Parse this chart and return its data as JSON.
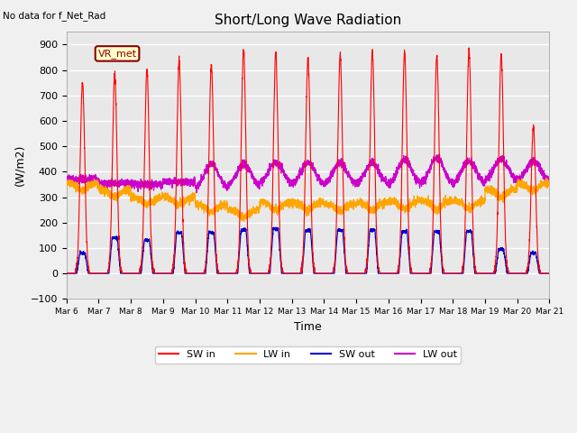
{
  "title": "Short/Long Wave Radiation",
  "ylabel": "(W/m2)",
  "xlabel": "Time",
  "annotation": "No data for f_Net_Rad",
  "legend_label": "VR_met",
  "ylim": [
    -100,
    950
  ],
  "yticks": [
    -100,
    0,
    100,
    200,
    300,
    400,
    500,
    600,
    700,
    800,
    900
  ],
  "x_tick_labels": [
    "Mar 6",
    "Mar 7",
    "Mar 8",
    "Mar 9",
    "Mar 10",
    "Mar 11",
    "Mar 12",
    "Mar 13",
    "Mar 14",
    "Mar 15",
    "Mar 16",
    "Mar 17",
    "Mar 18",
    "Mar 19",
    "Mar 20",
    "Mar 21"
  ],
  "colors": {
    "SW_in": "#ff0000",
    "LW_in": "#ffa500",
    "SW_out": "#0000cc",
    "LW_out": "#cc00cc"
  },
  "fig_facecolor": "#f0f0f0",
  "background_color": "#e8e8e8",
  "grid_color": "#ffffff",
  "legend_entries": [
    "SW in",
    "LW in",
    "SW out",
    "LW out"
  ],
  "n_days": 15,
  "ppd": 288,
  "SW_in_peaks": [
    750,
    780,
    800,
    835,
    820,
    880,
    870,
    845,
    860,
    870,
    870,
    855,
    875,
    860,
    575
  ],
  "SW_out_peaks": [
    80,
    140,
    130,
    160,
    160,
    170,
    175,
    170,
    170,
    170,
    165,
    165,
    165,
    95,
    80
  ],
  "LW_in_base": [
    355,
    330,
    300,
    300,
    270,
    250,
    280,
    280,
    275,
    280,
    285,
    285,
    285,
    330,
    355
  ],
  "LW_out_base": [
    370,
    355,
    350,
    360,
    330,
    340,
    350,
    345,
    345,
    345,
    345,
    345,
    350,
    360,
    360
  ],
  "LW_out_peak": [
    0,
    0,
    0,
    0,
    100,
    90,
    85,
    90,
    90,
    90,
    100,
    110,
    90,
    90,
    80
  ]
}
